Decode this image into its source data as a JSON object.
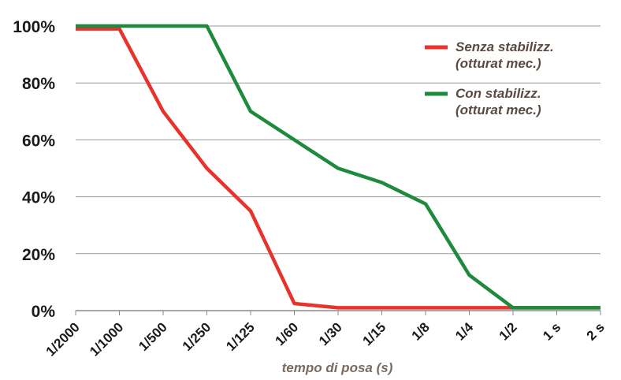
{
  "chart_data": {
    "type": "line",
    "categories": [
      "1/2000",
      "1/1000",
      "1/500",
      "1/250",
      "1/125",
      "1/60",
      "1/30",
      "1/15",
      "1/8",
      "1/4",
      "1/2",
      "1 s",
      "2 s"
    ],
    "series": [
      {
        "name_line1": "Senza stabilizz.",
        "name_line2": "(otturat mec.)",
        "color": "#e8322c",
        "values": [
          99,
          99,
          70,
          50,
          35,
          2.5,
          1,
          1,
          1,
          1,
          1,
          1,
          1
        ]
      },
      {
        "name_line1": "Con stabilizz.",
        "name_line2": "(otturat mec.)",
        "color": "#1e8a3c",
        "values": [
          100,
          100,
          100,
          100,
          70,
          60,
          50,
          45,
          37.5,
          12.5,
          1,
          1,
          1
        ]
      }
    ],
    "xlabel": "tempo di posa (s)",
    "ylabel": "",
    "ylim": [
      0,
      100
    ],
    "yticks": [
      "0%",
      "20%",
      "40%",
      "60%",
      "80%",
      "100%"
    ],
    "ytick_values": [
      0,
      20,
      40,
      60,
      80,
      100
    ],
    "grid": "horizontal",
    "legend": "top-right"
  }
}
